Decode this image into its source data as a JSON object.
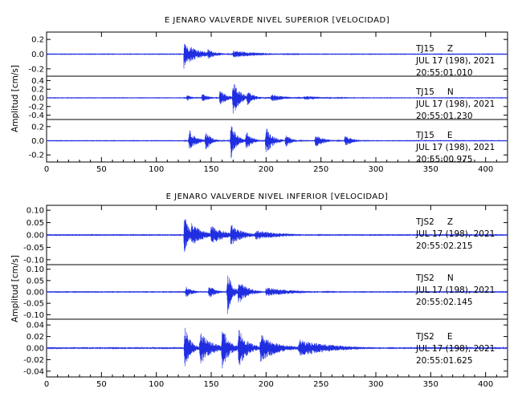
{
  "colors": {
    "trace": "#1f2ee0",
    "axis": "#000000",
    "background": "#ffffff"
  },
  "chart_data": [
    {
      "type": "line",
      "title": "E JENARO VALVERDE NIVEL SUPERIOR [VELOCIDAD]",
      "ylabel": "Amplitud [cm/s]",
      "xlim": [
        0,
        420
      ],
      "xticks": [
        0,
        50,
        100,
        150,
        200,
        250,
        300,
        350,
        400
      ],
      "grid": false,
      "series": [
        {
          "station": "TJ15",
          "component": "Z",
          "date": "JUL 17 (198), 2021",
          "time": "20:55:01.010",
          "ylim": [
            -0.3,
            0.3
          ],
          "ytick_labels": [
            "0.2",
            "0.0",
            "-0.2"
          ],
          "ytick_values": [
            0.2,
            0.0,
            -0.2
          ],
          "onset": 125,
          "peak_amplitude": 0.26,
          "noise": 0.004,
          "bursts": [
            [
              125,
              0.25,
              4
            ],
            [
              130,
              0.12,
              12
            ],
            [
              147,
              0.07,
              8
            ],
            [
              170,
              0.05,
              25
            ]
          ]
        },
        {
          "station": "TJ15",
          "component": "N",
          "date": "JUL 17 (198), 2021",
          "time": "20:55:01.230",
          "ylim": [
            -0.5,
            0.5
          ],
          "ytick_labels": [
            "0.4",
            "0.2",
            "0.0",
            "-0.2",
            "-0.4"
          ],
          "ytick_values": [
            0.4,
            0.2,
            0.0,
            -0.2,
            -0.4
          ],
          "onset": 125,
          "peak_amplitude": 0.45,
          "noise": 0.006,
          "bursts": [
            [
              128,
              0.07,
              5
            ],
            [
              142,
              0.1,
              6
            ],
            [
              158,
              0.2,
              6
            ],
            [
              170,
              0.42,
              6
            ],
            [
              183,
              0.17,
              6
            ],
            [
              205,
              0.09,
              12
            ],
            [
              235,
              0.05,
              20
            ]
          ]
        },
        {
          "station": "TJ15",
          "component": "E",
          "date": "JUL 17 (198), 2021",
          "time": "20:55:00.975",
          "ylim": [
            -0.3,
            0.3
          ],
          "ytick_labels": [
            "0.2",
            "0.0",
            "-0.2"
          ],
          "ytick_values": [
            0.2,
            0.0,
            -0.2
          ],
          "onset": 125,
          "peak_amplitude": 0.27,
          "noise": 0.004,
          "bursts": [
            [
              130,
              0.16,
              6
            ],
            [
              145,
              0.15,
              5
            ],
            [
              168,
              0.26,
              5
            ],
            [
              182,
              0.14,
              5
            ],
            [
              200,
              0.2,
              6
            ],
            [
              218,
              0.1,
              5
            ],
            [
              245,
              0.09,
              8
            ],
            [
              272,
              0.08,
              7
            ]
          ]
        }
      ]
    },
    {
      "type": "line",
      "title": "E JENARO VALVERDE NIVEL INFERIOR [VELOCIDAD]",
      "ylabel": "Amplitud [cm/s]",
      "xlim": [
        0,
        420
      ],
      "xticks": [
        0,
        50,
        100,
        150,
        200,
        250,
        300,
        350,
        400
      ],
      "grid": false,
      "series": [
        {
          "station": "TJS2",
          "component": "Z",
          "date": "JUL 17 (198), 2021",
          "time": "20:55:02.215",
          "ylim": [
            -0.12,
            0.12
          ],
          "ytick_labels": [
            "0.10",
            "0.05",
            "0.00",
            "-0.05",
            "-0.10"
          ],
          "ytick_values": [
            0.1,
            0.05,
            0.0,
            -0.05,
            -0.1
          ],
          "onset": 125,
          "peak_amplitude": 0.11,
          "noise": 0.0015,
          "bursts": [
            [
              125,
              0.1,
              4
            ],
            [
              132,
              0.05,
              10
            ],
            [
              150,
              0.04,
              12
            ],
            [
              168,
              0.045,
              10
            ],
            [
              190,
              0.02,
              25
            ]
          ]
        },
        {
          "station": "TJS2",
          "component": "N",
          "date": "JUL 17 (198), 2021",
          "time": "20:55:02.145",
          "ylim": [
            -0.12,
            0.12
          ],
          "ytick_labels": [
            "0.10",
            "0.05",
            "0.00",
            "-0.05",
            "-0.10"
          ],
          "ytick_values": [
            0.1,
            0.05,
            0.0,
            -0.05,
            -0.1
          ],
          "onset": 125,
          "peak_amplitude": 0.1,
          "noise": 0.0015,
          "bursts": [
            [
              127,
              0.025,
              6
            ],
            [
              148,
              0.03,
              6
            ],
            [
              165,
              0.1,
              4
            ],
            [
              175,
              0.06,
              8
            ],
            [
              200,
              0.02,
              25
            ]
          ]
        },
        {
          "station": "TJS2",
          "component": "E",
          "date": "JUL 17 (198), 2021",
          "time": "20:55:01.625",
          "ylim": [
            -0.05,
            0.05
          ],
          "ytick_labels": [
            "0.04",
            "0.02",
            "0.00",
            "-0.02",
            "-0.04"
          ],
          "ytick_values": [
            0.04,
            0.02,
            0.0,
            -0.02,
            -0.04
          ],
          "onset": 125,
          "peak_amplitude": 0.045,
          "noise": 0.0008,
          "bursts": [
            [
              126,
              0.04,
              5
            ],
            [
              140,
              0.03,
              10
            ],
            [
              160,
              0.04,
              6
            ],
            [
              175,
              0.035,
              8
            ],
            [
              195,
              0.025,
              15
            ],
            [
              230,
              0.015,
              30
            ]
          ]
        }
      ]
    }
  ]
}
